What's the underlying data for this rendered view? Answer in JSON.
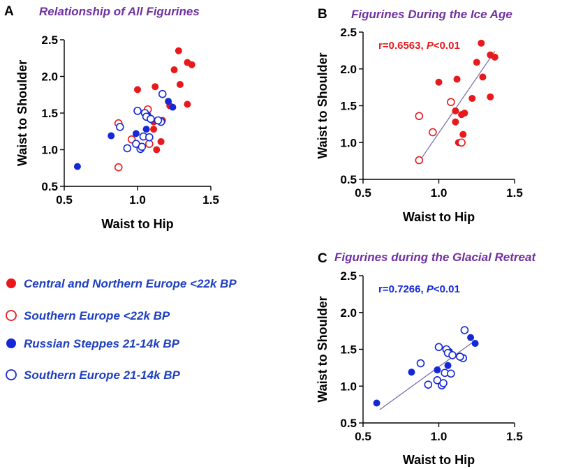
{
  "colors": {
    "red": "#e8191c",
    "blue": "#1428d8",
    "title": "#7030a0",
    "legend_text": "#1f3fbf",
    "fit_line": "#7468a6"
  },
  "legend": {
    "items": [
      {
        "label": "Central and Northern Europe <22k BP",
        "color": "#e8191c",
        "filled": true
      },
      {
        "label": "Southern Europe <22k BP",
        "color": "#e8191c",
        "filled": false
      },
      {
        "label": "Russian Steppes 21-14k BP",
        "color": "#1428d8",
        "filled": true
      },
      {
        "label": "Southern Europe 21-14k BP",
        "color": "#1428d8",
        "filled": false
      }
    ]
  },
  "chart_data": [
    {
      "type": "scatter",
      "panel": "A",
      "title": "Relationship of All Figurines",
      "xlabel": "Waist to Hip",
      "ylabel": "Waist to Shoulder",
      "xlim": [
        0.5,
        1.5
      ],
      "ylim": [
        0.5,
        2.5
      ],
      "xticks": [
        "0.5",
        "1.0",
        "1.5"
      ],
      "yticks": [
        "0.5",
        "1.0",
        "1.5",
        "2.0",
        "2.5"
      ],
      "stat": "",
      "series": [
        {
          "group": 0,
          "x": [
            1.28,
            1.34,
            1.37,
            1.25,
            1.29,
            1.0,
            1.12,
            1.22,
            1.34,
            1.11,
            1.17,
            1.13,
            1.11,
            1.16
          ],
          "y": [
            2.35,
            2.19,
            2.16,
            2.09,
            1.89,
            1.82,
            1.86,
            1.6,
            1.62,
            1.28,
            1.4,
            1.0,
            1.38,
            1.11
          ]
        },
        {
          "group": 1,
          "x": [
            0.87,
            0.96,
            1.07,
            0.87,
            1.08
          ],
          "y": [
            1.36,
            1.14,
            1.55,
            0.76,
            1.08
          ]
        },
        {
          "group": 2,
          "x": [
            0.59,
            0.82,
            0.99,
            1.06,
            1.07,
            1.21,
            1.24
          ],
          "y": [
            0.77,
            1.19,
            1.22,
            1.28,
            1.47,
            1.66,
            1.58
          ]
        },
        {
          "group": 3,
          "x": [
            0.88,
            0.93,
            0.99,
            1.02,
            1.04,
            1.05,
            1.06,
            1.09,
            1.0,
            1.16,
            1.17,
            1.14,
            1.03,
            1.08
          ],
          "y": [
            1.31,
            1.02,
            1.08,
            1.01,
            1.18,
            1.5,
            1.45,
            1.42,
            1.53,
            1.38,
            1.76,
            1.4,
            1.04,
            1.17
          ]
        }
      ]
    },
    {
      "type": "scatter",
      "panel": "B",
      "title": "Figurines During the Ice Age",
      "xlabel": "Waist to Hip",
      "ylabel": "Waist to Shoulder",
      "xlim": [
        0.5,
        1.5
      ],
      "ylim": [
        0.5,
        2.5
      ],
      "xticks": [
        "0.5",
        "1.0",
        "1.5"
      ],
      "yticks": [
        "0.5",
        "1.0",
        "1.5",
        "2.0",
        "2.5"
      ],
      "stat": "r=0.6563, P<0.01",
      "stat_color": "#e8191c",
      "fit": {
        "x": [
          0.87,
          1.37
        ],
        "y": [
          0.74,
          2.24
        ]
      },
      "series": [
        {
          "group": 0,
          "x": [
            1.28,
            1.34,
            1.37,
            1.25,
            1.29,
            1.0,
            1.12,
            1.22,
            1.34,
            1.11,
            1.17,
            1.13,
            1.11,
            1.16,
            1.15
          ],
          "y": [
            2.35,
            2.19,
            2.16,
            2.09,
            1.89,
            1.82,
            1.86,
            1.6,
            1.62,
            1.28,
            1.4,
            1.0,
            1.43,
            1.11,
            1.38
          ]
        },
        {
          "group": 1,
          "x": [
            0.87,
            0.96,
            1.08,
            0.87,
            1.15
          ],
          "y": [
            1.36,
            1.14,
            1.55,
            0.76,
            1.0
          ]
        }
      ]
    },
    {
      "type": "scatter",
      "panel": "C",
      "title": "Figurines during the Glacial Retreat",
      "xlabel": "Waist to Hip",
      "ylabel": "Waist to Shoulder",
      "xlim": [
        0.5,
        1.5
      ],
      "ylim": [
        0.5,
        2.5
      ],
      "xticks": [
        "0.5",
        "1.0",
        "1.5"
      ],
      "yticks": [
        "0.5",
        "1.0",
        "1.5",
        "2.0",
        "2.5"
      ],
      "stat": "r=0.7266, P<0.01",
      "stat_color": "#1428d8",
      "fit": {
        "x": [
          0.61,
          1.24
        ],
        "y": [
          0.68,
          1.62
        ]
      },
      "series": [
        {
          "group": 2,
          "x": [
            0.59,
            0.82,
            0.99,
            1.06,
            1.07,
            1.21,
            1.24
          ],
          "y": [
            0.77,
            1.19,
            1.22,
            1.28,
            1.47,
            1.66,
            1.58
          ]
        },
        {
          "group": 3,
          "x": [
            0.88,
            0.93,
            0.99,
            1.02,
            1.04,
            1.05,
            1.06,
            1.09,
            1.0,
            1.16,
            1.17,
            1.14,
            1.03,
            1.08
          ],
          "y": [
            1.31,
            1.02,
            1.08,
            1.01,
            1.18,
            1.5,
            1.45,
            1.42,
            1.53,
            1.38,
            1.76,
            1.4,
            1.04,
            1.17
          ]
        }
      ]
    }
  ]
}
